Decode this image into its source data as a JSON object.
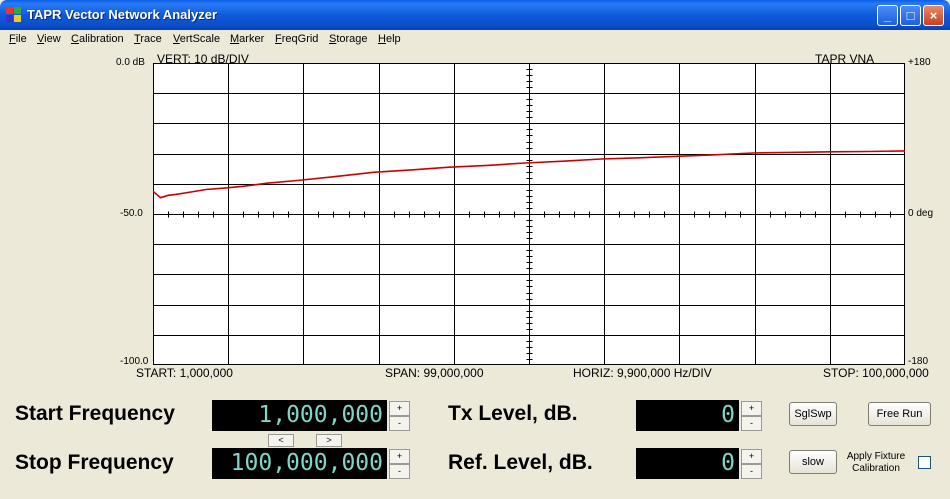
{
  "window": {
    "title": "TAPR Vector Network Analyzer"
  },
  "menu": [
    "File",
    "View",
    "Calibration",
    "Trace",
    "VertScale",
    "Marker",
    "FreqGrid",
    "Storage",
    "Help"
  ],
  "plot": {
    "vert_label": "VERT: 10 dB/DIV",
    "brand": "TAPR VNA",
    "y_top": "0.0 dB",
    "y_mid": "-50.0",
    "y_bottom": "-100.0",
    "phase_top": "+180",
    "phase_mid": "0 deg",
    "phase_bottom": "-180",
    "start": "START: 1,000,000",
    "span": "SPAN: 99,000,000",
    "horiz": "HORIZ: 9,900,000 Hz/DIV",
    "stop": "STOP: 100,000,000",
    "trace_color": "#cc0000"
  },
  "chart_data": {
    "type": "line",
    "x": [
      1,
      2,
      3,
      4,
      6,
      8,
      10,
      13,
      16,
      20,
      25,
      30,
      35,
      40,
      45,
      50,
      55,
      60,
      65,
      70,
      75,
      80,
      85,
      90,
      95,
      100
    ],
    "series": [
      {
        "values": [
          -42.5,
          -44.6,
          -43.8,
          -43.5,
          -42.7,
          -41.9,
          -41.5,
          -40.8,
          -39.8,
          -38.9,
          -37.6,
          -36.2,
          -35.4,
          -34.5,
          -33.9,
          -33.1,
          -32.5,
          -31.8,
          -31.4,
          -30.9,
          -30.4,
          -29.8,
          -29.6,
          -29.4,
          -29.3,
          -29.1
        ]
      }
    ],
    "xlim": [
      1,
      100
    ],
    "ylim": [
      -100,
      0
    ],
    "grid": true
  },
  "controls": {
    "start_label": "Start Frequency",
    "start_value": "1,000,000",
    "stop_label": "Stop Frequency",
    "stop_value": "100,000,000",
    "tx_label": "Tx Level, dB.",
    "tx_value": "0",
    "ref_label": "Ref. Level, dB.",
    "ref_value": "0",
    "plus": "+",
    "minus": "-",
    "left_arrow": "<",
    "right_arrow": ">",
    "sglswp": "SglSwp",
    "freerun": "Free Run",
    "slow": "slow",
    "apply_fixture": "Apply Fixture Calibration"
  }
}
